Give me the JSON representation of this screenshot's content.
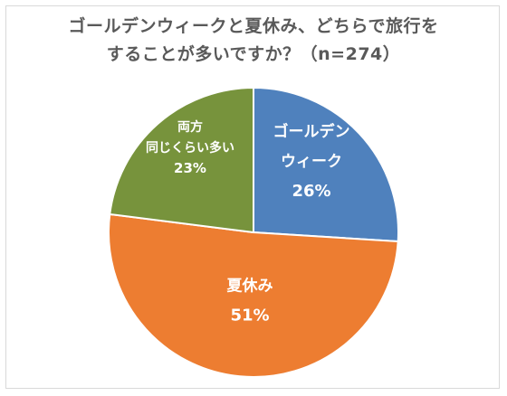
{
  "chart_data": {
    "type": "pie",
    "title": [
      "ゴールデンウィークと夏休み、どちらで旅行を",
      "することが多いですか？（n=274）"
    ],
    "slices": [
      {
        "label_lines": [
          "ゴールデン",
          "ウィーク"
        ],
        "value": 26,
        "value_label": "26%",
        "color": "#4f81bd"
      },
      {
        "label_lines": [
          "夏休み"
        ],
        "value": 51,
        "value_label": "51%",
        "color": "#ed7d31"
      },
      {
        "label_lines": [
          "両方",
          "同じくらい多い"
        ],
        "value": 23,
        "value_label": "23%",
        "color": "#77933c"
      }
    ],
    "start_angle_deg": 0,
    "direction": "clockwise",
    "legend": "none",
    "edge_color": "#ffffff"
  }
}
